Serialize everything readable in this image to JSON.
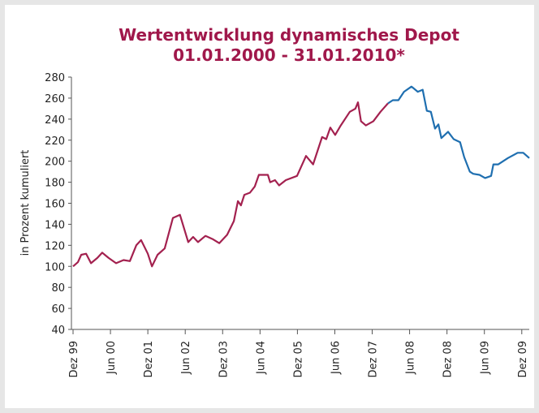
{
  "chart_data": {
    "type": "line",
    "title": "Wertentwicklung dynamisches Depot",
    "subtitle": "01.01.2000 - 31.01.2010*",
    "y_label": "in Prozent kumuliert",
    "xlim": [
      0,
      12.2
    ],
    "xticks": [
      {
        "value": 0,
        "label": "Dez 99"
      },
      {
        "value": 1,
        "label": "Jun 00"
      },
      {
        "value": 2,
        "label": "Dez 01"
      },
      {
        "value": 3,
        "label": "Jun 02"
      },
      {
        "value": 4,
        "label": "Dez 03"
      },
      {
        "value": 5,
        "label": "Jun 04"
      },
      {
        "value": 6,
        "label": "Dez 05"
      },
      {
        "value": 7,
        "label": "Jun 06"
      },
      {
        "value": 8,
        "label": "Dez 07"
      },
      {
        "value": 9,
        "label": "Jun 08"
      },
      {
        "value": 10,
        "label": "Dez 08"
      },
      {
        "value": 11,
        "label": "Jun 09"
      },
      {
        "value": 12,
        "label": "Dez 09"
      }
    ],
    "ylim": [
      40,
      280
    ],
    "yticks": [
      40,
      60,
      80,
      100,
      120,
      140,
      160,
      180,
      200,
      220,
      240,
      260,
      280
    ],
    "grid": false,
    "series": [
      {
        "color": "#a3214f",
        "x": [
          0,
          0.13,
          0.22,
          0.35,
          0.48,
          0.65,
          0.78,
          0.95,
          1.15,
          1.35,
          1.52,
          1.69,
          1.82,
          2.0,
          2.11,
          2.26,
          2.45,
          2.67,
          2.86,
          3.08,
          3.21,
          3.34,
          3.54,
          3.73,
          3.91,
          4.12,
          4.3,
          4.41,
          4.49,
          4.58,
          4.73,
          4.86,
          4.97,
          5.21,
          5.27,
          5.4,
          5.51,
          5.69,
          5.99,
          6.23,
          6.42,
          6.66,
          6.77,
          6.88,
          7.01,
          7.16,
          7.4,
          7.55,
          7.62,
          7.7,
          7.83,
          8.03,
          8.22,
          8.42
        ],
        "values": [
          100,
          104,
          111,
          112,
          103,
          108,
          113,
          108,
          103,
          106,
          105,
          120,
          125,
          112,
          100,
          111,
          117,
          146,
          149,
          123,
          128,
          123,
          129,
          126,
          122,
          130,
          143,
          162,
          158,
          168,
          170,
          176,
          187,
          187,
          180,
          182,
          177,
          182,
          186,
          205,
          197,
          223,
          221,
          232,
          225,
          234,
          247,
          250,
          256,
          238,
          234,
          238,
          247,
          255
        ]
      },
      {
        "color": "#1f6fb0",
        "x": [
          8.42,
          8.55,
          8.7,
          8.85,
          9.05,
          9.22,
          9.35,
          9.46,
          9.57,
          9.68,
          9.77,
          9.85,
          10.03,
          10.18,
          10.35,
          10.46,
          10.61,
          10.7,
          10.87,
          11.02,
          11.18,
          11.24,
          11.37,
          11.63,
          11.89,
          12.04,
          12.2
        ],
        "values": [
          255,
          258,
          258,
          266,
          271,
          266,
          268,
          248,
          247,
          231,
          235,
          222,
          228,
          221,
          218,
          204,
          190,
          188,
          187,
          184,
          186,
          197,
          197,
          203,
          208,
          208,
          203
        ]
      }
    ]
  }
}
